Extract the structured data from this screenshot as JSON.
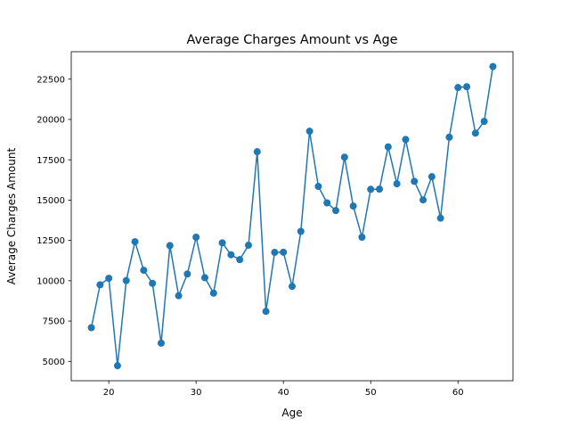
{
  "chart_data": {
    "type": "line",
    "title": "Average Charges Amount vs Age",
    "xlabel": "Age",
    "ylabel": "Average Charges Amount",
    "xlim": [
      15.7,
      66.3
    ],
    "ylim": [
      3800,
      24200
    ],
    "xticks": [
      20,
      30,
      40,
      50,
      60
    ],
    "yticks": [
      5000,
      7500,
      10000,
      12500,
      15000,
      17500,
      20000,
      22500
    ],
    "grid": false,
    "markers": true,
    "color": "#1f77b4",
    "series": [
      {
        "x": [
          18,
          19,
          20,
          21,
          22,
          23,
          24,
          25,
          26,
          27,
          28,
          29,
          30,
          31,
          32,
          33,
          34,
          35,
          36,
          37,
          38,
          39,
          40,
          41,
          42,
          43,
          44,
          45,
          46,
          47,
          48,
          49,
          50,
          51,
          52,
          53,
          54,
          55,
          56,
          57,
          58,
          59,
          60,
          61,
          62,
          63,
          64
        ],
        "values": [
          7090,
          9750,
          10150,
          4730,
          10010,
          12420,
          10650,
          9840,
          6130,
          12180,
          9070,
          10420,
          12700,
          10190,
          9230,
          12350,
          11610,
          11310,
          12200,
          18000,
          8100,
          11760,
          11770,
          9650,
          13060,
          19270,
          15850,
          14830,
          14350,
          17660,
          14630,
          12700,
          15670,
          15680,
          18300,
          16010,
          18760,
          16160,
          15010,
          16450,
          13880,
          18900,
          21980,
          22030,
          19150,
          19880,
          23280
        ]
      }
    ]
  }
}
